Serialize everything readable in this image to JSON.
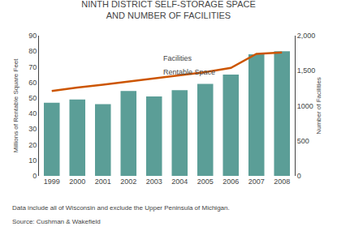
{
  "chart_data": {
    "type": "bar",
    "title": "NINTH DISTRICT SELF-STORAGE SPACE\nAND NUMBER OF FACILITIES",
    "categories": [
      "1999",
      "2000",
      "2001",
      "2002",
      "2003",
      "2004",
      "2005",
      "2006",
      "2007",
      "2008"
    ],
    "series": [
      {
        "type": "bar",
        "color": "#5b9e97",
        "values": [
          47,
          49,
          46,
          54.5,
          51,
          55,
          59,
          65,
          78,
          80
        ]
      },
      {
        "type": "line",
        "axis": "y2",
        "color": "#cc5500",
        "values": [
          1210,
          1260,
          1300,
          1345,
          1390,
          1435,
          1480,
          1540,
          1740,
          1760
        ]
      }
    ],
    "ylabel": "Millions of Rentable Square Feet",
    "y2label": "Number of Facilities",
    "ylim": [
      0,
      90
    ],
    "yticks": [
      0,
      10,
      20,
      30,
      40,
      50,
      60,
      70,
      80,
      90
    ],
    "y2lim": [
      0,
      2000
    ],
    "y2ticks": [
      0,
      500,
      1000,
      {
        "value": 1500,
        "label": "1,500"
      },
      {
        "value": 2000,
        "label": "2,000"
      }
    ],
    "annotations": [
      "Facilities",
      "Rentable Space"
    ],
    "footnote": [
      "Data include all of Wisconsin and exclude the Upper Peninsula of Michigan.",
      "Source: Cushman & Wakefield"
    ],
    "grid": false
  }
}
